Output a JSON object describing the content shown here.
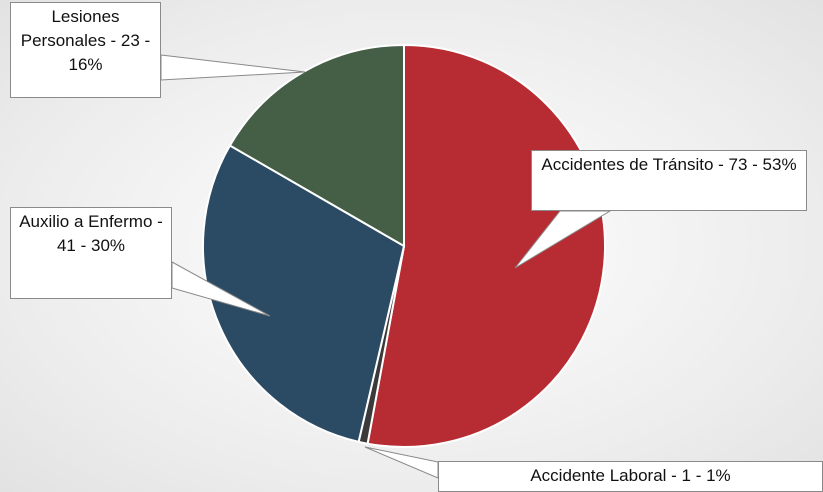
{
  "chart_data": {
    "type": "pie",
    "values": [
      73,
      1,
      41,
      23
    ],
    "value_labels": [
      "Accidentes de Tránsito - 73 - 53%",
      "Accidente Laboral - 1 - 1%",
      "Auxilio a Enfermo - 41 - 30%",
      "Lesiones Personales - 23 - 16%"
    ],
    "colors": [
      "#b72c32",
      "#3a3a3a",
      "#2b4a63",
      "#445f45"
    ],
    "start_angle": 0,
    "direction": "clockwise"
  }
}
